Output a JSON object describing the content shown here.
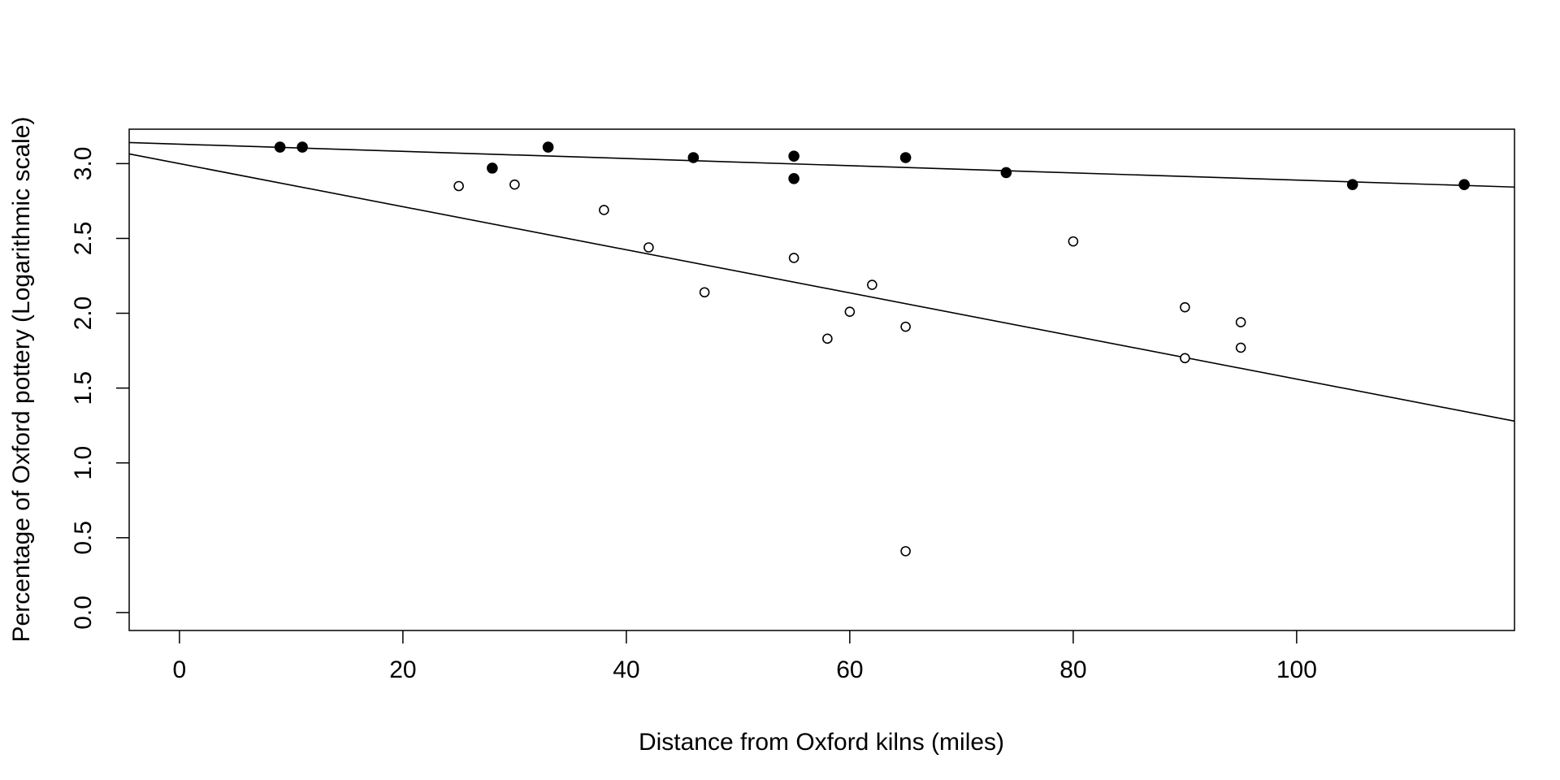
{
  "chart_data": {
    "type": "scatter",
    "title": "",
    "xlabel": "Distance from Oxford kilns (miles)",
    "ylabel": "Percentage of Oxford pottery (Logarithmic scale)",
    "xlim": [
      -4.5,
      119.5
    ],
    "ylim": [
      -0.12,
      3.23
    ],
    "x_ticks": [
      0,
      20,
      40,
      60,
      80,
      100
    ],
    "y_ticks": [
      0.0,
      0.5,
      1.0,
      1.5,
      2.0,
      2.5,
      3.0
    ],
    "y_tick_labels": [
      "0.0",
      "0.5",
      "1.0",
      "1.5",
      "2.0",
      "2.5",
      "3.0"
    ],
    "grid": false,
    "series": [
      {
        "marker": "filled-circle",
        "color": "#000000",
        "x": [
          9,
          11,
          28,
          33,
          46,
          55,
          55,
          65,
          74,
          105,
          115
        ],
        "y": [
          3.11,
          3.11,
          2.97,
          3.11,
          3.04,
          3.05,
          2.9,
          3.04,
          2.94,
          2.86,
          2.86
        ],
        "fit_line": {
          "intercept": 3.13,
          "slope": -0.0024
        }
      },
      {
        "marker": "open-circle",
        "color": "#000000",
        "x": [
          25,
          30,
          38,
          42,
          47,
          55,
          58,
          60,
          62,
          65,
          65,
          80,
          90,
          90,
          95,
          95
        ],
        "y": [
          2.85,
          2.86,
          2.69,
          2.44,
          2.14,
          2.37,
          1.83,
          2.01,
          2.19,
          1.91,
          0.41,
          2.48,
          2.04,
          1.7,
          1.94,
          1.77
        ],
        "fit_line": {
          "intercept": 3.0,
          "slope": -0.0144
        }
      }
    ]
  }
}
